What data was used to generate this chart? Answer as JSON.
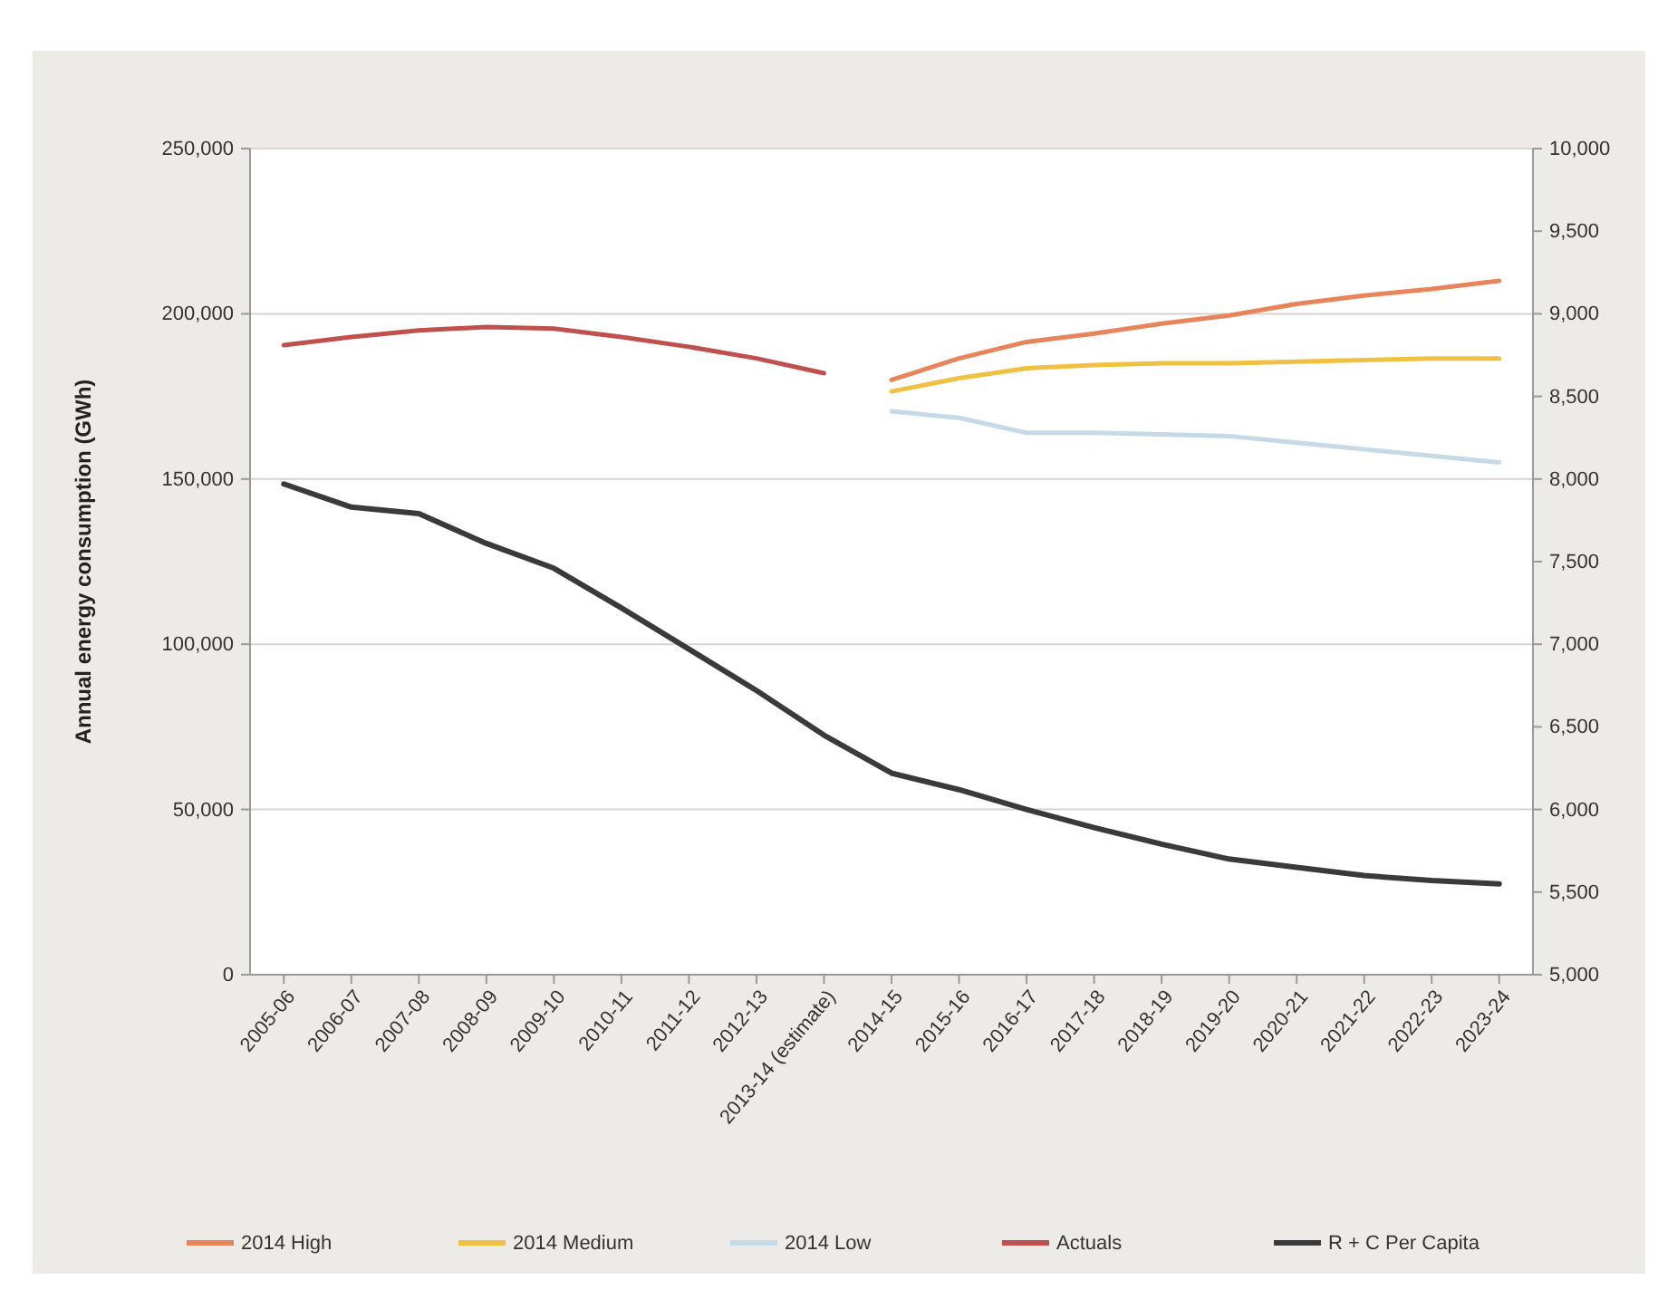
{
  "chart_data": {
    "type": "line",
    "ylabel": "Annual energy consumption (GWh)",
    "categories": [
      "2005-06",
      "2006-07",
      "2007-08",
      "2008-09",
      "2009-10",
      "2010-11",
      "2011-12",
      "2012-13",
      "2013-14 (estimate)",
      "2014-15",
      "2015-16",
      "2016-17",
      "2017-18",
      "2018-19",
      "2019-20",
      "2020-21",
      "2021-22",
      "2022-23",
      "2023-24"
    ],
    "series": [
      {
        "name": "2014 High",
        "color": "#e8845a",
        "values": [
          null,
          null,
          null,
          null,
          null,
          null,
          null,
          null,
          null,
          180000,
          186500,
          191500,
          194000,
          197000,
          199500,
          203000,
          205500,
          207500,
          210000
        ]
      },
      {
        "name": "2014 Medium",
        "color": "#f0c040",
        "values": [
          null,
          null,
          null,
          null,
          null,
          null,
          null,
          null,
          null,
          176500,
          180500,
          183500,
          184500,
          185000,
          185000,
          185500,
          186000,
          186500,
          186500
        ]
      },
      {
        "name": "2014 Low",
        "color": "#c5dae6",
        "values": [
          null,
          null,
          null,
          null,
          null,
          null,
          null,
          null,
          null,
          170500,
          168500,
          164000,
          164000,
          163500,
          163000,
          161000,
          159000,
          157000,
          155000
        ]
      },
      {
        "name": "Actuals",
        "color": "#c0504d",
        "values": [
          190500,
          193000,
          195000,
          196000,
          195500,
          193000,
          190000,
          186500,
          182000,
          null,
          null,
          null,
          null,
          null,
          null,
          null,
          null,
          null,
          null
        ]
      },
      {
        "name": "R + C Per Capita",
        "color": "#3a3a3a",
        "axis": "y2",
        "values": [
          7970,
          7830,
          7790,
          7610,
          7460,
          7220,
          6970,
          6720,
          6450,
          6220,
          6120,
          6000,
          5890,
          5790,
          5700,
          5650,
          5600,
          5570,
          5550
        ]
      }
    ],
    "ylim": [
      0,
      250000
    ],
    "yticks": [
      {
        "value": 0,
        "label": "0"
      },
      {
        "value": 50000,
        "label": "50,000"
      },
      {
        "value": 100000,
        "label": "100,000"
      },
      {
        "value": 150000,
        "label": "150,000"
      },
      {
        "value": 200000,
        "label": "200,000"
      },
      {
        "value": 250000,
        "label": "250,000"
      }
    ],
    "y2lim": [
      5000,
      10000
    ],
    "y2ticks": [
      {
        "value": 5000,
        "label": "5,000"
      },
      {
        "value": 5500,
        "label": "5,500"
      },
      {
        "value": 6000,
        "label": "6,000"
      },
      {
        "value": 6500,
        "label": "6,500"
      },
      {
        "value": 7000,
        "label": "7,000"
      },
      {
        "value": 7500,
        "label": "7,500"
      },
      {
        "value": 8000,
        "label": "8,000"
      },
      {
        "value": 8500,
        "label": "8,500"
      },
      {
        "value": 9000,
        "label": "9,000"
      },
      {
        "value": 9500,
        "label": "9,500"
      },
      {
        "value": 10000,
        "label": "10,000"
      }
    ],
    "grid": "y",
    "legend": "bottom",
    "marker": "none",
    "line_style": "solid"
  }
}
